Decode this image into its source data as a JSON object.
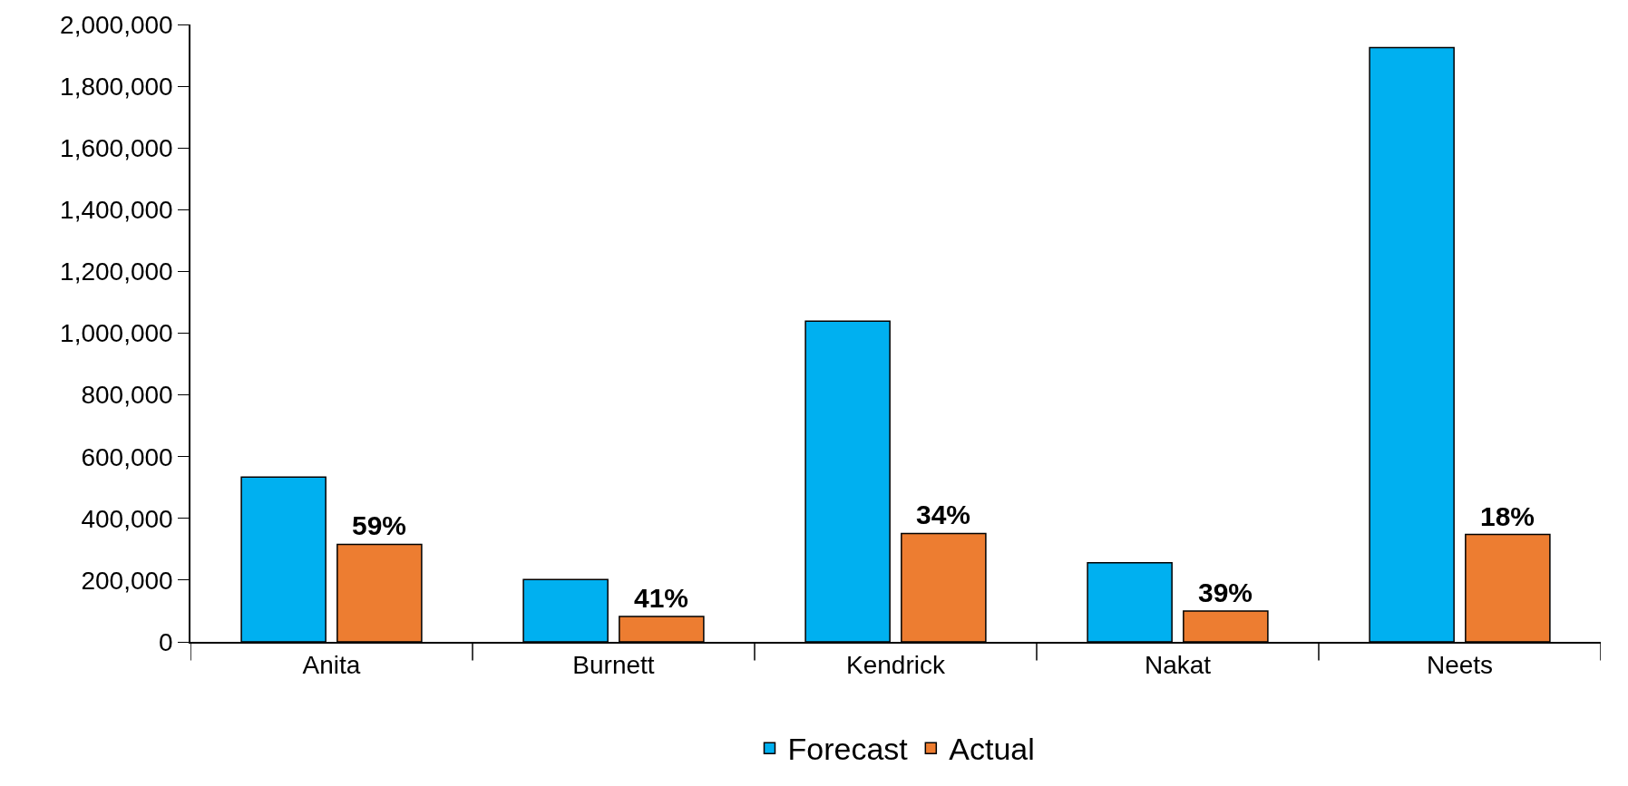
{
  "chart_data": {
    "type": "bar",
    "categories": [
      "Anita",
      "Burnett",
      "Kendrick",
      "Nakat",
      "Neets"
    ],
    "series": [
      {
        "name": "Forecast",
        "color": "#00b0f0",
        "values": [
          534000,
          202000,
          1039000,
          256000,
          1925000
        ]
      },
      {
        "name": "Actual",
        "color": "#ed7d31",
        "values": [
          316000,
          82000,
          351000,
          100000,
          348000
        ]
      }
    ],
    "annotations": [
      "59%",
      "41%",
      "34%",
      "39%",
      "18%"
    ],
    "ylim": [
      0,
      2000000
    ],
    "yticks": [
      {
        "value": 0,
        "label": "0"
      },
      {
        "value": 200000,
        "label": "200,000"
      },
      {
        "value": 400000,
        "label": "400,000"
      },
      {
        "value": 600000,
        "label": "600,000"
      },
      {
        "value": 800000,
        "label": "800,000"
      },
      {
        "value": 1000000,
        "label": "1,000,000"
      },
      {
        "value": 1200000,
        "label": "1,200,000"
      },
      {
        "value": 1400000,
        "label": "1,400,000"
      },
      {
        "value": 1600000,
        "label": "1,600,000"
      },
      {
        "value": 1800000,
        "label": "1,800,000"
      },
      {
        "value": 2000000,
        "label": "2,000,000"
      }
    ],
    "grid": false,
    "legend": "bottom"
  }
}
